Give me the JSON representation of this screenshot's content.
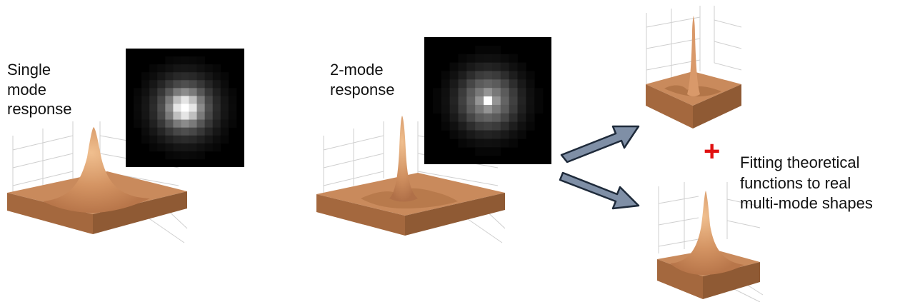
{
  "labels": {
    "single_mode": "Single\nmode\nresponse",
    "two_mode": "2-mode\nresponse",
    "plus": "+",
    "fitting": "Fitting theoretical\nfunctions to real\nmulti-mode shapes"
  },
  "colors": {
    "surface": "#c98a5c",
    "surface_light": "#e8b07f",
    "surface_dark": "#9a5f36",
    "grid": "#cfcfcf",
    "arrow_fill": "#7f8fa6",
    "arrow_stroke": "#1e2a3a",
    "plus": "#e01010",
    "image_bg": "#000000"
  }
}
